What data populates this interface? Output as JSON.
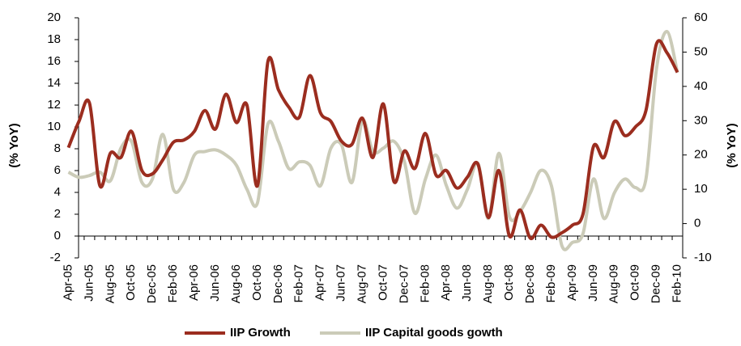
{
  "chart_data": {
    "type": "line",
    "categories": [
      "Apr-05",
      null,
      "Jun-05",
      null,
      "Aug-05",
      null,
      "Oct-05",
      null,
      "Dec-05",
      null,
      "Feb-06",
      null,
      "Apr-06",
      null,
      "Jun-06",
      null,
      "Aug-06",
      null,
      "Oct-06",
      null,
      "Dec-06",
      null,
      "Feb-07",
      null,
      "Apr-07",
      null,
      "Jun-07",
      null,
      "Aug-07",
      null,
      "Oct-07",
      null,
      "Dec-07",
      null,
      "Feb-08",
      null,
      "Apr-08",
      null,
      "Jun-08",
      null,
      "Aug-08",
      null,
      "Oct-08",
      null,
      "Dec-08",
      null,
      "Feb-09",
      null,
      "Apr-09",
      null,
      "Jun-09",
      null,
      "Aug-09",
      null,
      "Oct-09",
      null,
      "Dec-09",
      null,
      "Feb-10"
    ],
    "series": [
      {
        "name": "IIP Growth",
        "color": "#9b2d1f",
        "values": [
          8.1,
          10.5,
          12.2,
          4.6,
          7.6,
          7.2,
          9.6,
          6.0,
          5.7,
          7.0,
          8.6,
          8.8,
          9.6,
          11.5,
          9.8,
          13.0,
          10.4,
          12.0,
          4.6,
          16.0,
          13.4,
          11.8,
          10.9,
          14.7,
          11.3,
          10.5,
          8.7,
          8.4,
          10.8,
          7.2,
          12.1,
          5.0,
          7.8,
          6.2,
          9.4,
          5.6,
          6.0,
          4.4,
          5.4,
          6.6,
          1.7,
          6.0,
          0.0,
          2.4,
          -0.2,
          1.0,
          -0.1,
          0.3,
          1.0,
          2.0,
          8.2,
          7.2,
          10.5,
          9.2,
          10.0,
          11.5,
          17.6,
          16.8,
          15.0
        ]
      },
      {
        "name": "IIP Capital goods gowth",
        "color": "#cbcbb8",
        "axis": "y2",
        "values": [
          15,
          13.5,
          14,
          15,
          12.5,
          22,
          24,
          12,
          13,
          26,
          10,
          12,
          20,
          21,
          21.5,
          20,
          17,
          10,
          6,
          29,
          24,
          16,
          18,
          17,
          11,
          22,
          23,
          12,
          30,
          21,
          22,
          24,
          18,
          3,
          13,
          20,
          11,
          4.5,
          10,
          17.5,
          1.5,
          20.5,
          2,
          3.5,
          9,
          15.5,
          11,
          -6.5,
          -5.5,
          -3,
          13,
          1.5,
          9,
          13,
          10.5,
          13,
          45,
          56,
          44
        ]
      }
    ],
    "ylabel": "(% YoY)",
    "y2label": "(% YoY)",
    "ylim": [
      -2,
      20
    ],
    "yticks": [
      -2,
      0,
      2,
      4,
      6,
      8,
      10,
      12,
      14,
      16,
      18,
      20
    ],
    "y2lim": [
      -10,
      60
    ],
    "y2ticks": [
      -10,
      0,
      10,
      20,
      30,
      40,
      50,
      60
    ],
    "legend": "bottom"
  }
}
